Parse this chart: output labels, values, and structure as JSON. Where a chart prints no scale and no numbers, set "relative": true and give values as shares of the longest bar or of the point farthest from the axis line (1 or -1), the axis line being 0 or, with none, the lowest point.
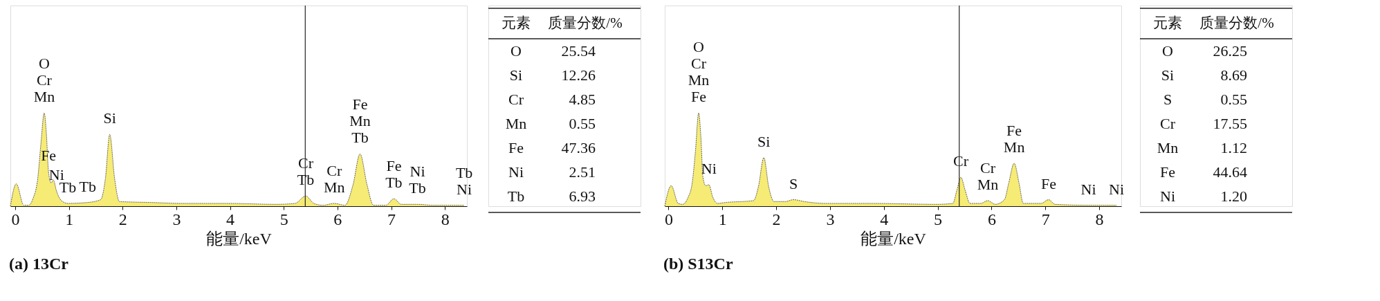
{
  "chart_data": [
    {
      "type": "area",
      "title": "(a) 13Cr",
      "xlabel": "能量/keV",
      "relative": true,
      "color": "#f2e33b",
      "xlim": [
        -0.09,
        8.41
      ],
      "xticks": [
        0,
        1,
        2,
        3,
        4,
        5,
        6,
        7,
        8
      ],
      "grid": false,
      "x": [
        -0.09,
        0.02,
        0.16,
        0.25,
        0.33,
        0.42,
        0.48,
        0.54,
        0.58,
        0.62,
        0.67,
        0.71,
        0.77,
        0.86,
        0.98,
        1.35,
        1.59,
        1.68,
        1.76,
        1.85,
        1.94,
        2.52,
        3.11,
        3.98,
        4.86,
        5.21,
        5.41,
        5.56,
        5.73,
        5.94,
        6.14,
        6.29,
        6.42,
        6.55,
        6.67,
        6.9,
        7.05,
        7.19,
        7.49,
        7.78,
        8.36
      ],
      "values": [
        0,
        0.24,
        0.01,
        0.01,
        0.08,
        0.3,
        0.68,
        1,
        0.78,
        0.37,
        0.25,
        0.28,
        0.16,
        0.06,
        0.03,
        0.04,
        0.07,
        0.3,
        0.77,
        0.3,
        0.05,
        0.04,
        0.03,
        0.03,
        0.02,
        0.03,
        0.11,
        0.03,
        0.01,
        0.03,
        0.01,
        0.23,
        0.56,
        0.23,
        0.01,
        0.01,
        0.08,
        0.02,
        0.02,
        0.01,
        0.01
      ],
      "ref_lines": [
        {
          "axis": "x",
          "value": 5.4
        }
      ],
      "annotations": [
        {
          "text": "O\nCr\nMn",
          "x": 0.54,
          "y": 1
        },
        {
          "text": "Fe",
          "x": 0.62,
          "y": 0.37
        },
        {
          "text": "Ni",
          "x": 0.77,
          "y": 0.16
        },
        {
          "text": "Tb",
          "x": 0.98,
          "y": 0.03
        },
        {
          "text": "Tb",
          "x": 1.35,
          "y": 0.04
        },
        {
          "text": "Si",
          "x": 1.76,
          "y": 0.77
        },
        {
          "text": "Cr\nTb",
          "x": 5.41,
          "y": 0.11
        },
        {
          "text": "Cr\nMn",
          "x": 5.94,
          "y": 0.03
        },
        {
          "text": "Fe\nMn\nTb",
          "x": 6.42,
          "y": 0.56
        },
        {
          "text": "Fe\nTb",
          "x": 7.05,
          "y": 0.08
        },
        {
          "text": "Ni\nTb",
          "x": 7.49,
          "y": 0.02
        },
        {
          "text": "Tb\nNi",
          "x": 8.36,
          "y": 0.01
        }
      ]
    },
    {
      "type": "other",
      "xlabel": "元素",
      "ylabel": "质量分数/%",
      "categories": [
        "O",
        "Si",
        "Cr",
        "Mn",
        "Fe",
        "Ni",
        "Tb"
      ],
      "values": [
        25.54,
        12.26,
        4.85,
        0.55,
        47.36,
        2.51,
        6.93
      ],
      "data_labels": true
    },
    {
      "type": "area",
      "title": "(b) S13Cr",
      "xlabel": "能量/keV",
      "relative": true,
      "color": "#f2e33b",
      "xlim": [
        -0.07,
        8.41
      ],
      "xticks": [
        0,
        1,
        2,
        3,
        4,
        5,
        6,
        7,
        8
      ],
      "grid": false,
      "x": [
        -0.07,
        0.05,
        0.18,
        0.26,
        0.36,
        0.44,
        0.5,
        0.56,
        0.6,
        0.64,
        0.69,
        0.75,
        0.82,
        0.91,
        1.06,
        1.58,
        1.67,
        1.77,
        1.86,
        1.96,
        2.17,
        2.32,
        2.52,
        2.93,
        3.81,
        4.98,
        5.28,
        5.36,
        5.43,
        5.51,
        5.6,
        5.8,
        5.93,
        6.07,
        6.24,
        6.32,
        6.42,
        6.51,
        6.59,
        6.92,
        7.06,
        7.18,
        7.8,
        8.32
      ],
      "values": [
        0,
        0.22,
        0.03,
        0.02,
        0.09,
        0.25,
        0.59,
        1,
        0.75,
        0.31,
        0.22,
        0.23,
        0.1,
        0.03,
        0.04,
        0.06,
        0.21,
        0.52,
        0.21,
        0.05,
        0.05,
        0.07,
        0.05,
        0.03,
        0.03,
        0.02,
        0.03,
        0.18,
        0.31,
        0.17,
        0.03,
        0.03,
        0.06,
        0.02,
        0.07,
        0.25,
        0.46,
        0.25,
        0.03,
        0.03,
        0.07,
        0.02,
        0.01,
        0.01
      ],
      "ref_lines": [
        {
          "axis": "x",
          "value": 5.4
        }
      ],
      "annotations": [
        {
          "text": "O\nCr\nMn\nFe",
          "x": 0.56,
          "y": 1
        },
        {
          "text": "Ni",
          "x": 0.75,
          "y": 0.23
        },
        {
          "text": "Si",
          "x": 1.77,
          "y": 0.52
        },
        {
          "text": "S",
          "x": 2.32,
          "y": 0.07
        },
        {
          "text": "Cr",
          "x": 5.43,
          "y": 0.31
        },
        {
          "text": "Cr\nMn",
          "x": 5.93,
          "y": 0.06
        },
        {
          "text": "Fe\nMn",
          "x": 6.42,
          "y": 0.46
        },
        {
          "text": "Fe",
          "x": 7.06,
          "y": 0.07
        },
        {
          "text": "Ni",
          "x": 7.8,
          "y": 0.01
        },
        {
          "text": "Ni",
          "x": 8.32,
          "y": 0.01
        }
      ]
    },
    {
      "type": "other",
      "xlabel": "元素",
      "ylabel": "质量分数/%",
      "categories": [
        "O",
        "Si",
        "S",
        "Cr",
        "Mn",
        "Fe",
        "Ni"
      ],
      "values": [
        26.25,
        8.69,
        0.55,
        17.55,
        1.12,
        44.64,
        1.2
      ],
      "value_labels": [
        "26.25",
        "8.69",
        "0.55",
        "17.55",
        "1.12",
        "44.64",
        "1.20"
      ]
    }
  ]
}
